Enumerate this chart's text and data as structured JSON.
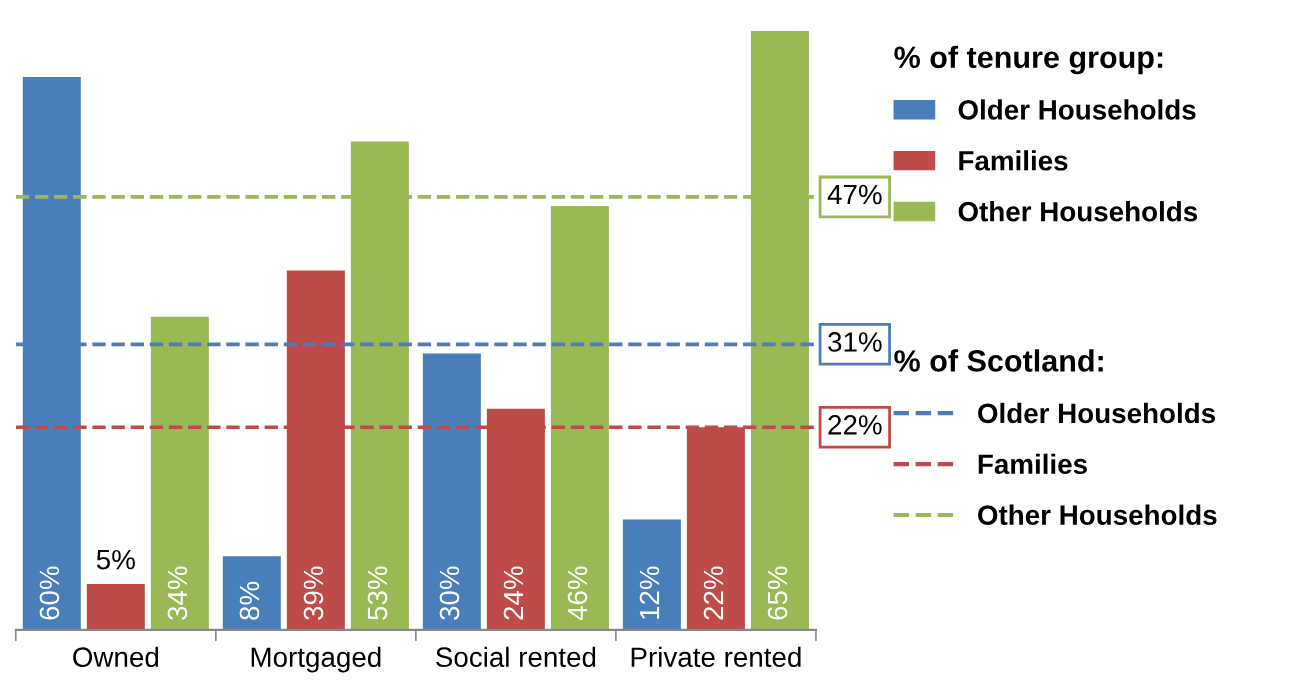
{
  "chart_data": {
    "type": "bar",
    "categories": [
      "Owned",
      "Mortgaged",
      "Social rented",
      "Private rented"
    ],
    "legend_title": "% of tenure group:",
    "legend": "right",
    "series": [
      {
        "name": "Older Households",
        "color": "#4a7ebb",
        "values": [
          60,
          8,
          30,
          12
        ],
        "value_labels": [
          "60%",
          "8%",
          "30%",
          "12%"
        ]
      },
      {
        "name": "Families",
        "color": "#be4b48",
        "values": [
          5,
          39,
          24,
          22
        ],
        "value_labels": [
          "5%",
          "39%",
          "24%",
          "22%"
        ]
      },
      {
        "name": "Other Households",
        "color": "#98b954",
        "values": [
          34,
          53,
          46,
          65
        ],
        "value_labels": [
          "34%",
          "53%",
          "46%",
          "65%"
        ]
      }
    ],
    "ref_lines": [
      {
        "axis": "y",
        "value": 31,
        "label": "Older Households",
        "color": "#4a7ebb",
        "line_style": "dashed"
      },
      {
        "axis": "y",
        "value": 22,
        "label": "Families",
        "color": "#be4b48",
        "line_style": "dashed"
      },
      {
        "axis": "y",
        "value": 47,
        "label": "Other Households",
        "color": "#98b954",
        "line_style": "dashed"
      }
    ],
    "annotations": [
      "% of Scotland:",
      "31%",
      "22%",
      "47%"
    ]
  }
}
